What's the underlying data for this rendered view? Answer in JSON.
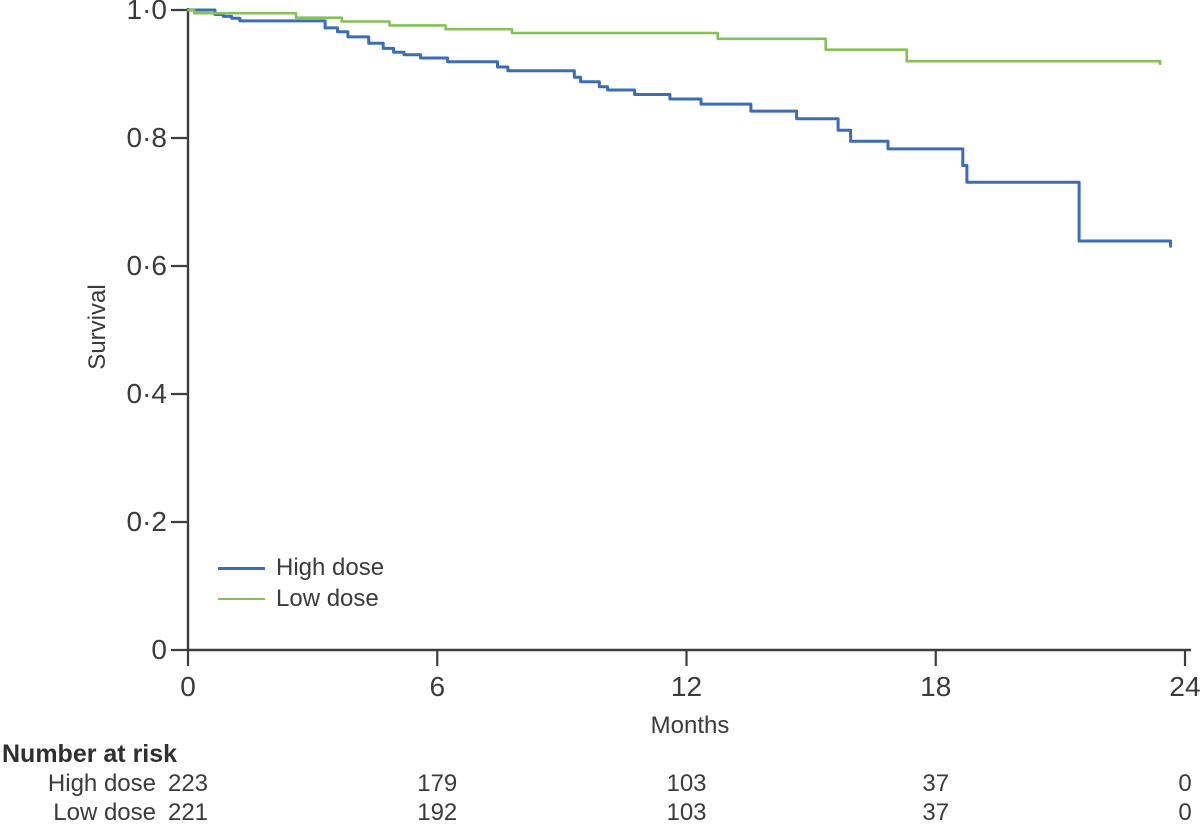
{
  "chart_data": {
    "type": "line",
    "subtype": "kaplan-meier-step",
    "title": "",
    "xlabel": "Months",
    "ylabel": "Survival",
    "xlim": [
      0,
      24
    ],
    "ylim": [
      0,
      1
    ],
    "grid": false,
    "legend_position": "inside lower-left",
    "axis_color": "#3D3D3D",
    "x_ticks": [
      {
        "value": 0,
        "label": "0"
      },
      {
        "value": 6,
        "label": "6"
      },
      {
        "value": 12,
        "label": "12"
      },
      {
        "value": 18,
        "label": "18"
      },
      {
        "value": 24,
        "label": "24"
      }
    ],
    "y_ticks": [
      {
        "value": 0,
        "label": "0"
      },
      {
        "value": 0.2,
        "label": "0·2"
      },
      {
        "value": 0.4,
        "label": "0·4"
      },
      {
        "value": 0.6,
        "label": "0·6"
      },
      {
        "value": 0.8,
        "label": "0·8"
      },
      {
        "value": 1.0,
        "label": "1·0"
      }
    ],
    "series": [
      {
        "name": "High dose",
        "color": "#3A6DB5",
        "points": [
          [
            0,
            1.0
          ],
          [
            0.65,
            0.993
          ],
          [
            0.85,
            0.99
          ],
          [
            1.05,
            0.987
          ],
          [
            1.25,
            0.983
          ],
          [
            3.3,
            0.972
          ],
          [
            3.6,
            0.966
          ],
          [
            3.85,
            0.958
          ],
          [
            4.35,
            0.948
          ],
          [
            4.7,
            0.94
          ],
          [
            4.95,
            0.934
          ],
          [
            5.2,
            0.93
          ],
          [
            5.6,
            0.925
          ],
          [
            6.25,
            0.919
          ],
          [
            7.45,
            0.911
          ],
          [
            7.7,
            0.905
          ],
          [
            9.3,
            0.895
          ],
          [
            9.45,
            0.888
          ],
          [
            9.9,
            0.88
          ],
          [
            10.1,
            0.875
          ],
          [
            10.75,
            0.868
          ],
          [
            11.6,
            0.861
          ],
          [
            12.35,
            0.853
          ],
          [
            13.55,
            0.842
          ],
          [
            14.65,
            0.83
          ],
          [
            15.65,
            0.812
          ],
          [
            15.95,
            0.795
          ],
          [
            16.85,
            0.783
          ],
          [
            18.65,
            0.757
          ],
          [
            18.75,
            0.731
          ],
          [
            21.45,
            0.639
          ],
          [
            23.65,
            0.631
          ]
        ]
      },
      {
        "name": "Low dose",
        "color": "#85C158",
        "points": [
          [
            0,
            1.0
          ],
          [
            0.15,
            0.995
          ],
          [
            2.6,
            0.988
          ],
          [
            3.7,
            0.982
          ],
          [
            4.85,
            0.976
          ],
          [
            6.2,
            0.97
          ],
          [
            7.8,
            0.964
          ],
          [
            12.75,
            0.955
          ],
          [
            15.35,
            0.938
          ],
          [
            17.3,
            0.92
          ],
          [
            23.4,
            0.916
          ]
        ]
      }
    ]
  },
  "risk_table": {
    "title": "Number at risk",
    "columns_months": [
      0,
      6,
      12,
      18,
      24
    ],
    "rows": [
      {
        "label": "High dose",
        "values": [
          223,
          179,
          103,
          37,
          0
        ]
      },
      {
        "label": "Low dose",
        "values": [
          221,
          192,
          103,
          37,
          0
        ]
      }
    ]
  }
}
